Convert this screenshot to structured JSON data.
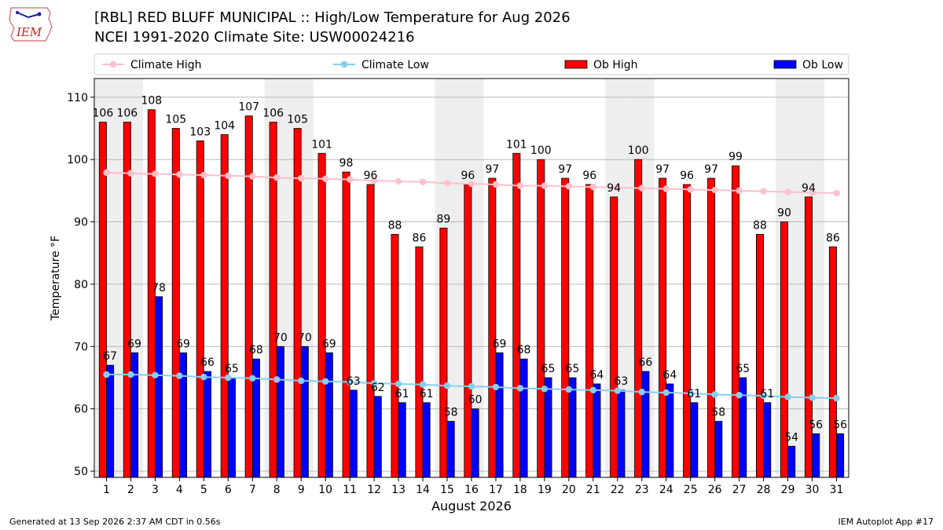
{
  "header": {
    "title_line1": "[RBL] RED BLUFF MUNICIPAL :: High/Low Temperature for Aug 2026",
    "title_line2": "NCEI 1991-2020 Climate Site: USW00024216"
  },
  "logo": {
    "text": "IEM"
  },
  "footer": {
    "generated": "Generated at 13 Sep 2026 2:37 AM CDT in 0.56s",
    "app": "IEM Autoplot App #17"
  },
  "colors": {
    "ob_high": "#ff0000",
    "ob_low": "#0000ff",
    "climate_high": "#ffc0cb",
    "climate_low": "#87ceeb",
    "weekend_band": "#eeeeee",
    "grid": "#b0b0b0"
  },
  "chart_data": {
    "type": "bar",
    "xlabel": "August 2026",
    "ylabel": "Temperature °F",
    "ylim": [
      49,
      113
    ],
    "yticks": [
      50,
      60,
      70,
      80,
      90,
      100,
      110
    ],
    "categories": [
      "1",
      "2",
      "3",
      "4",
      "5",
      "6",
      "7",
      "8",
      "9",
      "10",
      "11",
      "12",
      "13",
      "14",
      "15",
      "16",
      "17",
      "18",
      "19",
      "20",
      "21",
      "22",
      "23",
      "24",
      "25",
      "26",
      "27",
      "28",
      "29",
      "30",
      "31"
    ],
    "weekend_days": [
      1,
      2,
      8,
      9,
      15,
      16,
      22,
      23,
      29,
      30
    ],
    "legend_position": "top",
    "grid": true,
    "series": [
      {
        "name": "Ob High",
        "kind": "bar",
        "values": [
          106,
          106,
          108,
          105,
          103,
          104,
          107,
          106,
          105,
          101,
          98,
          96,
          88,
          86,
          89,
          96,
          97,
          101,
          100,
          97,
          96,
          94,
          100,
          97,
          96,
          97,
          99,
          88,
          90,
          94,
          86
        ]
      },
      {
        "name": "Ob Low",
        "kind": "bar",
        "values": [
          67,
          69,
          78,
          69,
          66,
          65,
          68,
          70,
          70,
          69,
          63,
          62,
          61,
          61,
          58,
          60,
          69,
          68,
          65,
          65,
          64,
          63,
          66,
          64,
          61,
          58,
          65,
          61,
          54,
          56,
          56
        ]
      },
      {
        "name": "Climate High",
        "kind": "line",
        "values": [
          97.9,
          97.8,
          97.7,
          97.6,
          97.5,
          97.4,
          97.3,
          97.1,
          97.0,
          96.9,
          96.8,
          96.6,
          96.5,
          96.4,
          96.2,
          96.1,
          96.0,
          95.8,
          95.8,
          95.7,
          95.6,
          95.5,
          95.4,
          95.3,
          95.2,
          95.1,
          95.0,
          94.9,
          94.8,
          94.7,
          94.6
        ]
      },
      {
        "name": "Climate Low",
        "kind": "line",
        "values": [
          65.5,
          65.5,
          65.4,
          65.3,
          65.1,
          65.0,
          64.9,
          64.7,
          64.5,
          64.4,
          64.3,
          64.1,
          64.0,
          63.9,
          63.7,
          63.6,
          63.5,
          63.3,
          63.2,
          63.1,
          63.0,
          62.9,
          62.7,
          62.6,
          62.5,
          62.3,
          62.2,
          62.1,
          61.9,
          61.8,
          61.7
        ]
      }
    ]
  }
}
